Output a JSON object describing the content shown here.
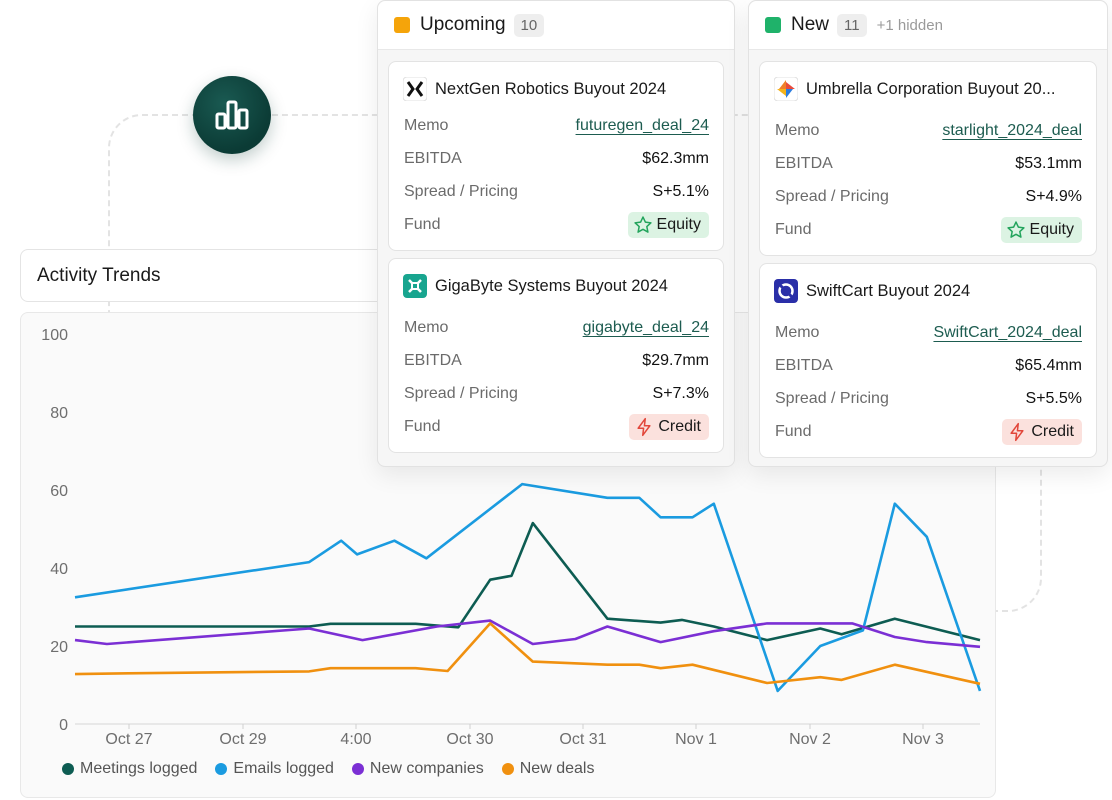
{
  "trends": {
    "title": "Activity Trends"
  },
  "chart_data": {
    "type": "line",
    "x_labels": [
      "Oct 27",
      "Oct 29",
      "4:00",
      "Oct 30",
      "Oct 31",
      "Nov 1",
      "Nov 2",
      "Nov 3"
    ],
    "y_ticks": [
      "0",
      "20",
      "40",
      "60",
      "80",
      "100"
    ],
    "ylim": [
      0,
      100
    ],
    "grid": false,
    "legend_position": "bottom-left",
    "series": [
      {
        "name": "Meetings logged",
        "color": "#0d5c52",
        "points": [
          [
            26.0,
            25
          ],
          [
            27.2,
            25
          ],
          [
            28.2,
            25
          ],
          [
            28.4,
            25.7
          ],
          [
            29.2,
            25.7
          ],
          [
            29.6,
            24.8
          ],
          [
            29.9,
            37
          ],
          [
            30.1,
            38
          ],
          [
            30.3,
            51.5
          ],
          [
            31.0,
            27
          ],
          [
            31.5,
            26
          ],
          [
            31.7,
            26.7
          ],
          [
            32.0,
            25
          ],
          [
            32.5,
            21.5
          ],
          [
            33.0,
            24.5
          ],
          [
            33.2,
            23
          ],
          [
            33.7,
            27
          ],
          [
            34.5,
            21.5
          ]
        ]
      },
      {
        "name": "Emails logged",
        "color": "#1a9be0",
        "points": [
          [
            26.0,
            32.5
          ],
          [
            28.2,
            41.5
          ],
          [
            28.5,
            47
          ],
          [
            28.65,
            43.5
          ],
          [
            29.0,
            47
          ],
          [
            29.3,
            42.5
          ],
          [
            30.2,
            61.5
          ],
          [
            31.0,
            58
          ],
          [
            31.3,
            58
          ],
          [
            31.5,
            53
          ],
          [
            31.8,
            53
          ],
          [
            32.0,
            56.5
          ],
          [
            32.6,
            8.5
          ],
          [
            33.0,
            20
          ],
          [
            33.4,
            24
          ],
          [
            33.7,
            56.5
          ],
          [
            34.0,
            48
          ],
          [
            34.5,
            8.5
          ]
        ]
      },
      {
        "name": "New companies",
        "color": "#7b2fd4",
        "points": [
          [
            26.0,
            21.5
          ],
          [
            26.3,
            20.5
          ],
          [
            28.2,
            24.5
          ],
          [
            28.7,
            21.5
          ],
          [
            29.4,
            25
          ],
          [
            29.9,
            26.5
          ],
          [
            30.3,
            20.5
          ],
          [
            30.7,
            21.8
          ],
          [
            31.0,
            25
          ],
          [
            31.5,
            21
          ],
          [
            32.0,
            23.8
          ],
          [
            32.5,
            25.8
          ],
          [
            33.3,
            25.8
          ],
          [
            33.7,
            22.3
          ],
          [
            34.0,
            21
          ],
          [
            34.5,
            19.8
          ]
        ]
      },
      {
        "name": "New deals",
        "color": "#f0900f",
        "points": [
          [
            26.0,
            12.8
          ],
          [
            26.5,
            13
          ],
          [
            28.2,
            13.5
          ],
          [
            28.4,
            14.3
          ],
          [
            29.2,
            14.3
          ],
          [
            29.5,
            13.6
          ],
          [
            29.9,
            25.8
          ],
          [
            30.3,
            16
          ],
          [
            31.0,
            15.2
          ],
          [
            31.3,
            15.2
          ],
          [
            31.5,
            14.3
          ],
          [
            31.8,
            15.2
          ],
          [
            32.5,
            10.5
          ],
          [
            33.0,
            12
          ],
          [
            33.2,
            11.3
          ],
          [
            33.7,
            15.2
          ],
          [
            34.5,
            10.3
          ]
        ]
      }
    ]
  },
  "badge": {
    "icon": "bar-chart-icon"
  },
  "columns": [
    {
      "name": "Upcoming",
      "count": "10",
      "hidden": "",
      "color": "#f5a40a",
      "cards": [
        {
          "title": "NextGen Robotics Buyout 2024",
          "logo": "nextgen-logo-icon",
          "memo_label": "Memo",
          "memo": "futuregen_deal_24",
          "ebitda_label": "EBITDA",
          "ebitda": "$62.3mm",
          "spread_label": "Spread / Pricing",
          "spread": "S+5.1%",
          "fund_label": "Fund",
          "fund": "Equity",
          "fund_type": "equity"
        },
        {
          "title": "GigaByte Systems Buyout 2024",
          "logo": "gigabyte-logo-icon",
          "memo_label": "Memo",
          "memo": "gigabyte_deal_24",
          "ebitda_label": "EBITDA",
          "ebitda": "$29.7mm",
          "spread_label": "Spread / Pricing",
          "spread": "S+7.3%",
          "fund_label": "Fund",
          "fund": "Credit",
          "fund_type": "credit"
        }
      ]
    },
    {
      "name": "New",
      "count": "11",
      "hidden": "+1 hidden",
      "color": "#1fb26a",
      "cards": [
        {
          "title": "Umbrella Corporation Buyout 20...",
          "logo": "umbrella-logo-icon",
          "memo_label": "Memo",
          "memo": "starlight_2024_deal",
          "ebitda_label": "EBITDA",
          "ebitda": "$53.1mm",
          "spread_label": "Spread / Pricing",
          "spread": "S+4.9%",
          "fund_label": "Fund",
          "fund": "Equity",
          "fund_type": "equity"
        },
        {
          "title": "SwiftCart Buyout 2024",
          "logo": "swiftcart-logo-icon",
          "memo_label": "Memo",
          "memo": "SwiftCart_2024_deal",
          "ebitda_label": "EBITDA",
          "ebitda": "$65.4mm",
          "spread_label": "Spread / Pricing",
          "spread": "S+5.5%",
          "fund_label": "Fund",
          "fund": "Credit",
          "fund_type": "credit"
        }
      ]
    }
  ]
}
